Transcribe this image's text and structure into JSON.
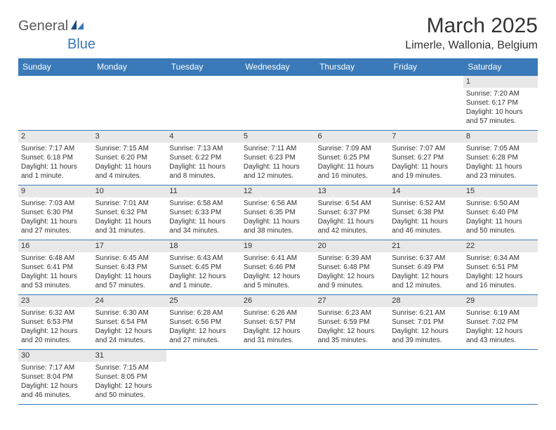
{
  "logo": {
    "text1": "General",
    "text2": "Blue"
  },
  "title": "March 2025",
  "location": "Limerle, Wallonia, Belgium",
  "colors": {
    "header_bar": "#3a7ab8",
    "day_num_bg": "#e8e8e8",
    "border": "#3a7ab8",
    "text": "#333333",
    "bg": "#ffffff"
  },
  "day_headers": [
    "Sunday",
    "Monday",
    "Tuesday",
    "Wednesday",
    "Thursday",
    "Friday",
    "Saturday"
  ],
  "weeks": [
    [
      null,
      null,
      null,
      null,
      null,
      null,
      {
        "n": "1",
        "sr": "Sunrise: 7:20 AM",
        "ss": "Sunset: 6:17 PM",
        "dl": "Daylight: 10 hours and 57 minutes."
      }
    ],
    [
      {
        "n": "2",
        "sr": "Sunrise: 7:17 AM",
        "ss": "Sunset: 6:18 PM",
        "dl": "Daylight: 11 hours and 1 minute."
      },
      {
        "n": "3",
        "sr": "Sunrise: 7:15 AM",
        "ss": "Sunset: 6:20 PM",
        "dl": "Daylight: 11 hours and 4 minutes."
      },
      {
        "n": "4",
        "sr": "Sunrise: 7:13 AM",
        "ss": "Sunset: 6:22 PM",
        "dl": "Daylight: 11 hours and 8 minutes."
      },
      {
        "n": "5",
        "sr": "Sunrise: 7:11 AM",
        "ss": "Sunset: 6:23 PM",
        "dl": "Daylight: 11 hours and 12 minutes."
      },
      {
        "n": "6",
        "sr": "Sunrise: 7:09 AM",
        "ss": "Sunset: 6:25 PM",
        "dl": "Daylight: 11 hours and 16 minutes."
      },
      {
        "n": "7",
        "sr": "Sunrise: 7:07 AM",
        "ss": "Sunset: 6:27 PM",
        "dl": "Daylight: 11 hours and 19 minutes."
      },
      {
        "n": "8",
        "sr": "Sunrise: 7:05 AM",
        "ss": "Sunset: 6:28 PM",
        "dl": "Daylight: 11 hours and 23 minutes."
      }
    ],
    [
      {
        "n": "9",
        "sr": "Sunrise: 7:03 AM",
        "ss": "Sunset: 6:30 PM",
        "dl": "Daylight: 11 hours and 27 minutes."
      },
      {
        "n": "10",
        "sr": "Sunrise: 7:01 AM",
        "ss": "Sunset: 6:32 PM",
        "dl": "Daylight: 11 hours and 31 minutes."
      },
      {
        "n": "11",
        "sr": "Sunrise: 6:58 AM",
        "ss": "Sunset: 6:33 PM",
        "dl": "Daylight: 11 hours and 34 minutes."
      },
      {
        "n": "12",
        "sr": "Sunrise: 6:56 AM",
        "ss": "Sunset: 6:35 PM",
        "dl": "Daylight: 11 hours and 38 minutes."
      },
      {
        "n": "13",
        "sr": "Sunrise: 6:54 AM",
        "ss": "Sunset: 6:37 PM",
        "dl": "Daylight: 11 hours and 42 minutes."
      },
      {
        "n": "14",
        "sr": "Sunrise: 6:52 AM",
        "ss": "Sunset: 6:38 PM",
        "dl": "Daylight: 11 hours and 46 minutes."
      },
      {
        "n": "15",
        "sr": "Sunrise: 6:50 AM",
        "ss": "Sunset: 6:40 PM",
        "dl": "Daylight: 11 hours and 50 minutes."
      }
    ],
    [
      {
        "n": "16",
        "sr": "Sunrise: 6:48 AM",
        "ss": "Sunset: 6:41 PM",
        "dl": "Daylight: 11 hours and 53 minutes."
      },
      {
        "n": "17",
        "sr": "Sunrise: 6:45 AM",
        "ss": "Sunset: 6:43 PM",
        "dl": "Daylight: 11 hours and 57 minutes."
      },
      {
        "n": "18",
        "sr": "Sunrise: 6:43 AM",
        "ss": "Sunset: 6:45 PM",
        "dl": "Daylight: 12 hours and 1 minute."
      },
      {
        "n": "19",
        "sr": "Sunrise: 6:41 AM",
        "ss": "Sunset: 6:46 PM",
        "dl": "Daylight: 12 hours and 5 minutes."
      },
      {
        "n": "20",
        "sr": "Sunrise: 6:39 AM",
        "ss": "Sunset: 6:48 PM",
        "dl": "Daylight: 12 hours and 9 minutes."
      },
      {
        "n": "21",
        "sr": "Sunrise: 6:37 AM",
        "ss": "Sunset: 6:49 PM",
        "dl": "Daylight: 12 hours and 12 minutes."
      },
      {
        "n": "22",
        "sr": "Sunrise: 6:34 AM",
        "ss": "Sunset: 6:51 PM",
        "dl": "Daylight: 12 hours and 16 minutes."
      }
    ],
    [
      {
        "n": "23",
        "sr": "Sunrise: 6:32 AM",
        "ss": "Sunset: 6:53 PM",
        "dl": "Daylight: 12 hours and 20 minutes."
      },
      {
        "n": "24",
        "sr": "Sunrise: 6:30 AM",
        "ss": "Sunset: 6:54 PM",
        "dl": "Daylight: 12 hours and 24 minutes."
      },
      {
        "n": "25",
        "sr": "Sunrise: 6:28 AM",
        "ss": "Sunset: 6:56 PM",
        "dl": "Daylight: 12 hours and 27 minutes."
      },
      {
        "n": "26",
        "sr": "Sunrise: 6:26 AM",
        "ss": "Sunset: 6:57 PM",
        "dl": "Daylight: 12 hours and 31 minutes."
      },
      {
        "n": "27",
        "sr": "Sunrise: 6:23 AM",
        "ss": "Sunset: 6:59 PM",
        "dl": "Daylight: 12 hours and 35 minutes."
      },
      {
        "n": "28",
        "sr": "Sunrise: 6:21 AM",
        "ss": "Sunset: 7:01 PM",
        "dl": "Daylight: 12 hours and 39 minutes."
      },
      {
        "n": "29",
        "sr": "Sunrise: 6:19 AM",
        "ss": "Sunset: 7:02 PM",
        "dl": "Daylight: 12 hours and 43 minutes."
      }
    ],
    [
      {
        "n": "30",
        "sr": "Sunrise: 7:17 AM",
        "ss": "Sunset: 8:04 PM",
        "dl": "Daylight: 12 hours and 46 minutes."
      },
      {
        "n": "31",
        "sr": "Sunrise: 7:15 AM",
        "ss": "Sunset: 8:05 PM",
        "dl": "Daylight: 12 hours and 50 minutes."
      },
      null,
      null,
      null,
      null,
      null
    ]
  ]
}
